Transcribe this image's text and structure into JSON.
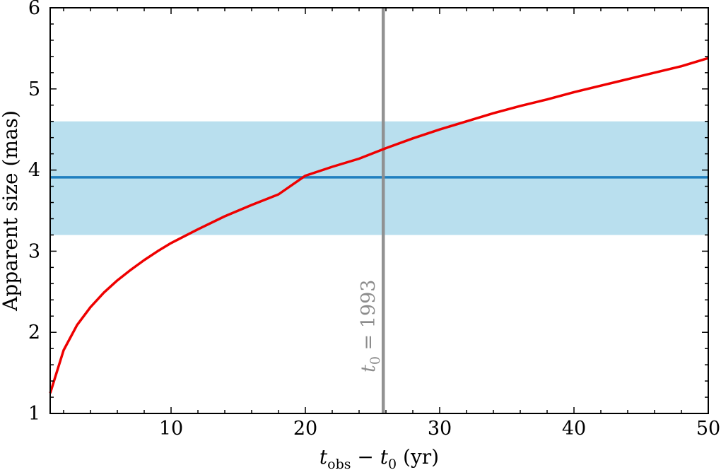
{
  "chart_data": {
    "type": "line",
    "title": "",
    "xlabel": {
      "base": "t",
      "sub": "obs",
      "mid": " − ",
      "base2": "t",
      "sub2": "0",
      "tail": " (yr)"
    },
    "ylabel": "Apparent size (mas)",
    "xlim": [
      1,
      50
    ],
    "ylim": [
      1,
      6
    ],
    "xticks": [
      10,
      20,
      30,
      40,
      50
    ],
    "yticks": [
      1,
      2,
      3,
      4,
      5,
      6
    ],
    "grid": false,
    "series": [
      {
        "color": "#ee0000",
        "x": [
          1,
          2,
          3,
          4,
          5,
          6,
          7,
          8,
          9,
          10,
          12,
          14,
          16,
          18,
          20,
          22,
          24,
          26,
          28,
          30,
          32,
          34,
          36,
          38,
          40,
          42,
          44,
          46,
          48,
          50
        ],
        "y": [
          1.25,
          1.78,
          2.09,
          2.31,
          2.49,
          2.64,
          2.77,
          2.89,
          3.0,
          3.1,
          3.27,
          3.43,
          3.57,
          3.7,
          3.93,
          4.04,
          4.14,
          4.27,
          4.39,
          4.5,
          4.6,
          4.7,
          4.79,
          4.87,
          4.96,
          5.04,
          5.12,
          5.2,
          5.28,
          5.38
        ]
      }
    ],
    "band": {
      "y0": 3.2,
      "y1": 4.6,
      "center": 3.91,
      "fill": "#b9dfee",
      "line": "#1f7fbf"
    },
    "vline": {
      "x": 25.8,
      "color": "#8c8c8c",
      "label_base": "t",
      "label_sub": "0",
      "label_tail": " = 1993"
    }
  }
}
